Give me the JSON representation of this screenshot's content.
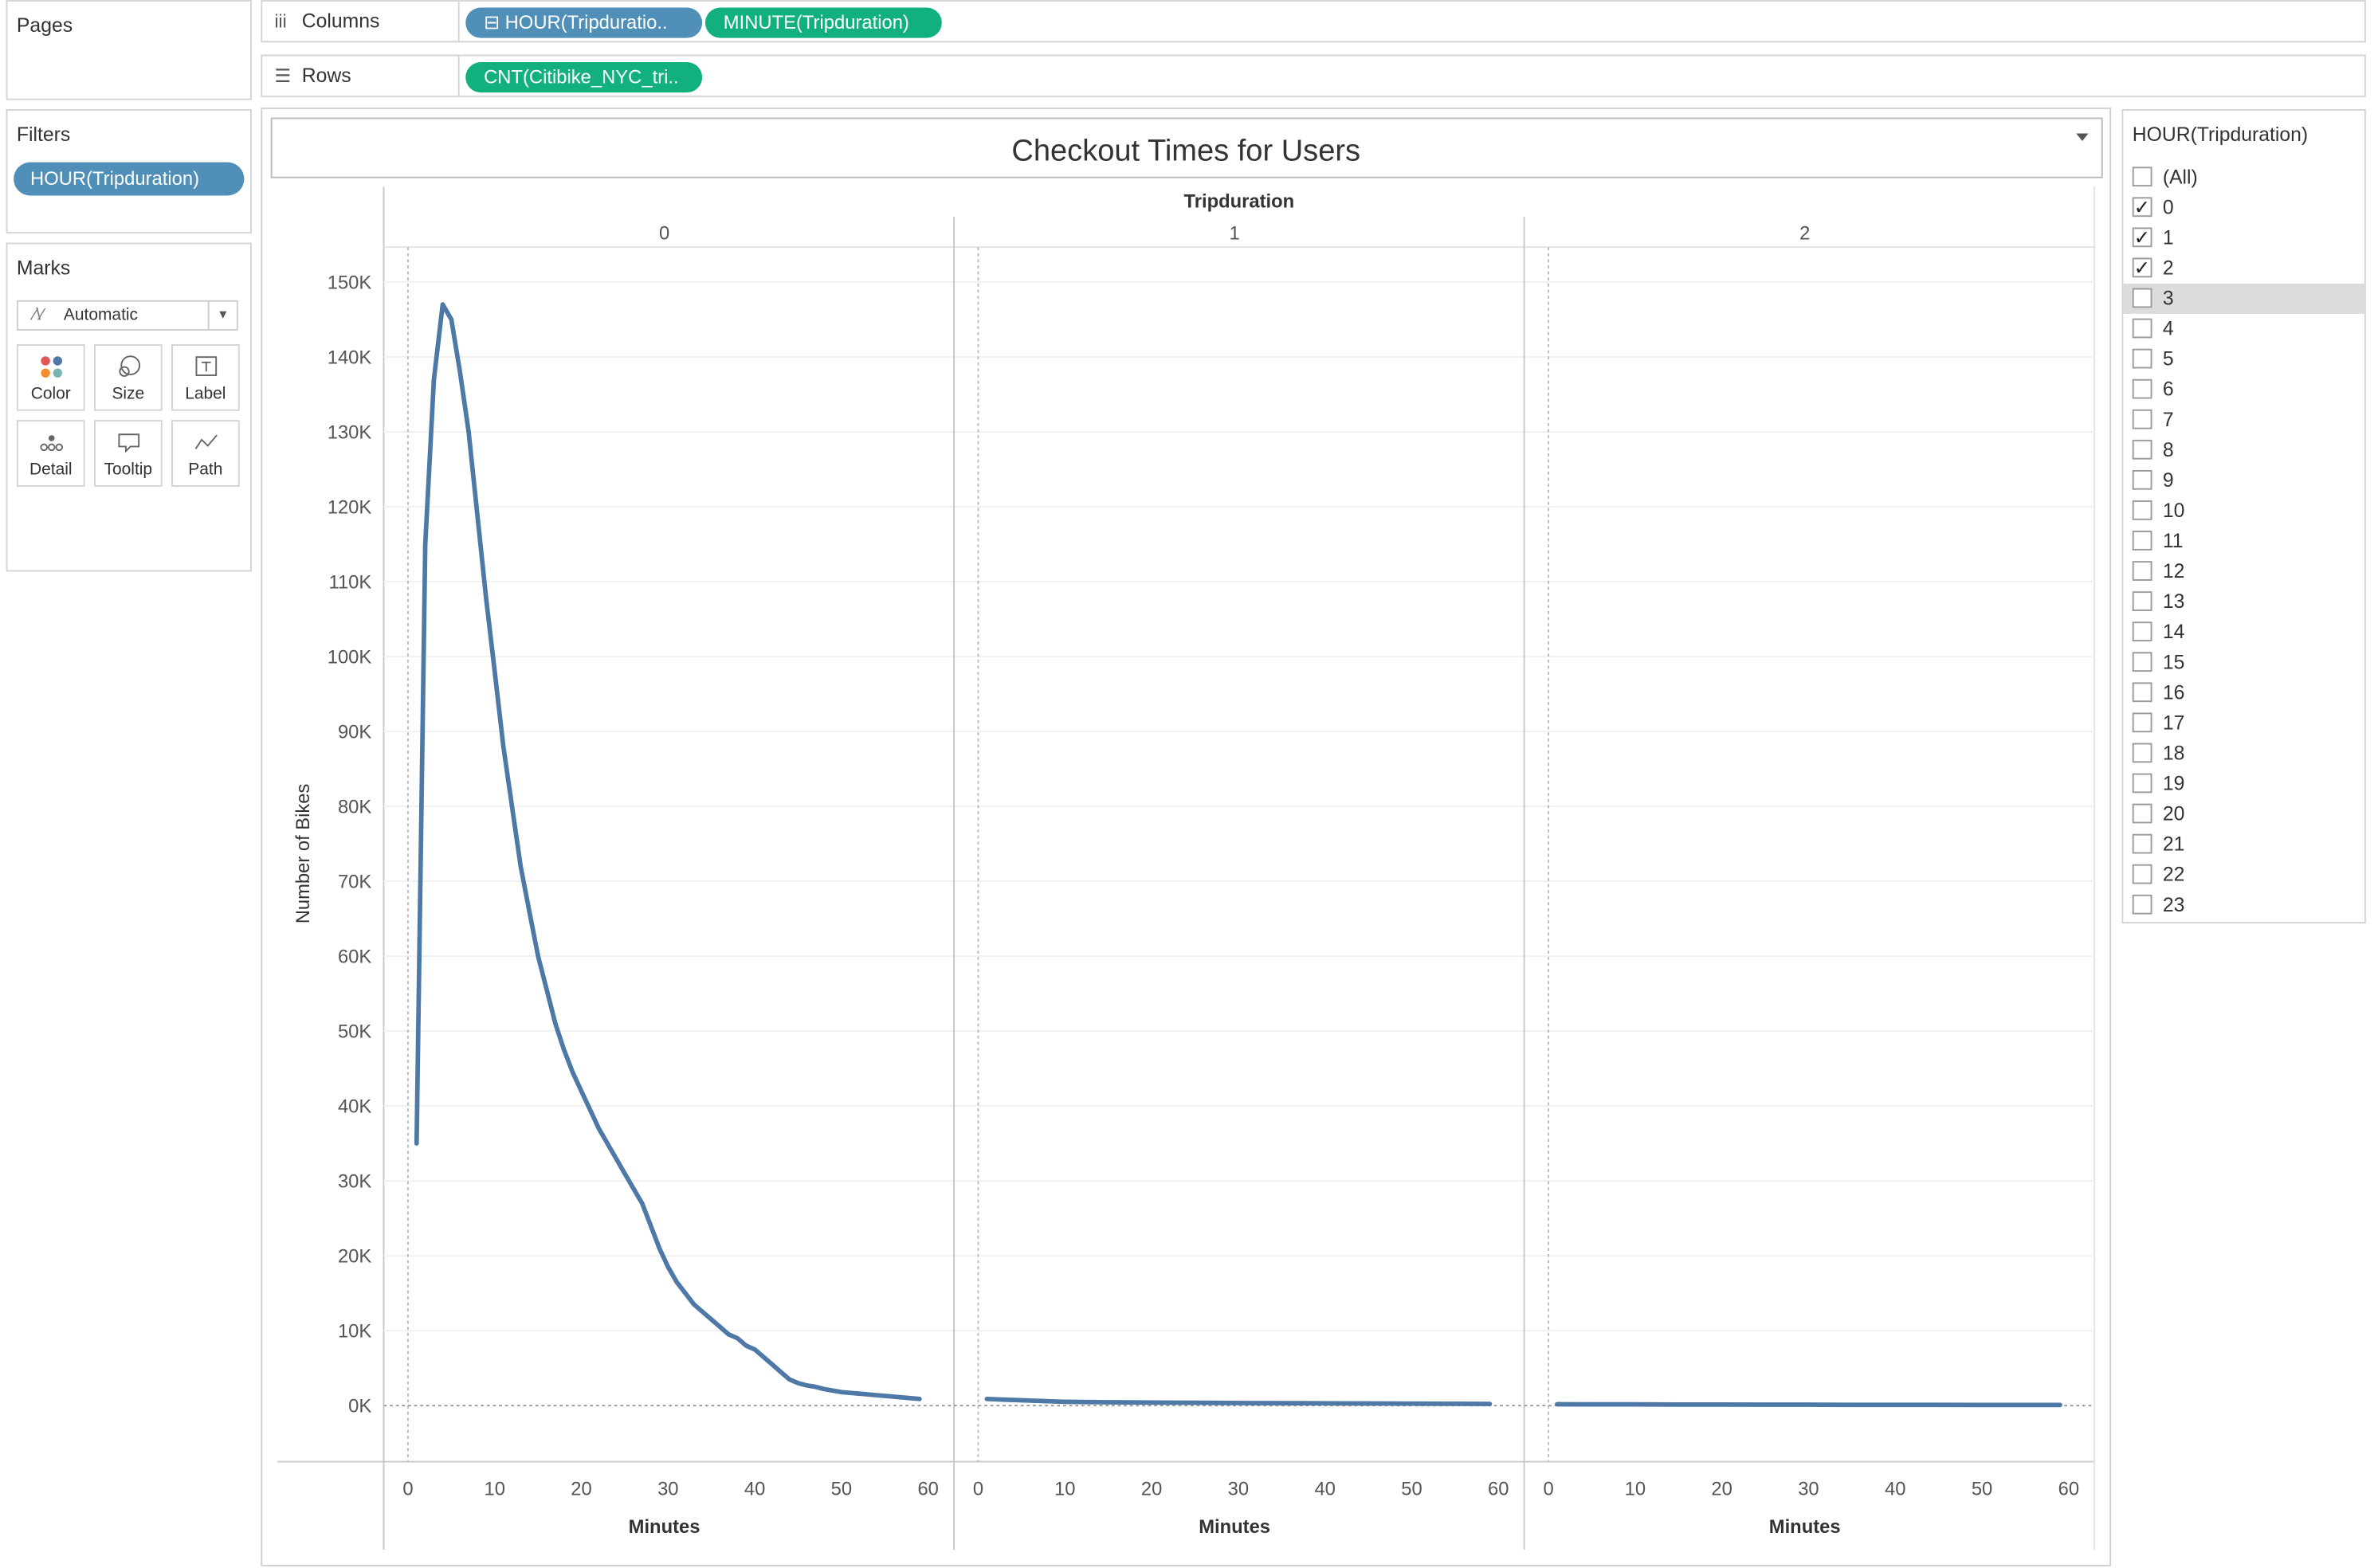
{
  "pages": {
    "title": "Pages"
  },
  "shelves": {
    "columns_label": "Columns",
    "columns_pills": [
      "⊟ HOUR(Tripduratio..",
      "MINUTE(Tripduration)"
    ],
    "rows_label": "Rows",
    "rows_pills": [
      "CNT(Citibike_NYC_tri.."
    ]
  },
  "filters": {
    "title": "Filters",
    "pill": "HOUR(Tripduration)"
  },
  "marks": {
    "title": "Marks",
    "type": "Automatic",
    "buttons": [
      {
        "label": "Color",
        "icon": "color-icon"
      },
      {
        "label": "Size",
        "icon": "size-icon"
      },
      {
        "label": "Label",
        "icon": "label-icon"
      },
      {
        "label": "Detail",
        "icon": "detail-icon"
      },
      {
        "label": "Tooltip",
        "icon": "tooltip-icon"
      },
      {
        "label": "Path",
        "icon": "path-icon"
      }
    ]
  },
  "legend": {
    "title": "HOUR(Tripduration)",
    "items": [
      {
        "label": "(All)",
        "checked": false
      },
      {
        "label": "0",
        "checked": true
      },
      {
        "label": "1",
        "checked": true
      },
      {
        "label": "2",
        "checked": true
      },
      {
        "label": "3",
        "checked": false,
        "highlight": true
      },
      {
        "label": "4",
        "checked": false
      },
      {
        "label": "5",
        "checked": false
      },
      {
        "label": "6",
        "checked": false
      },
      {
        "label": "7",
        "checked": false
      },
      {
        "label": "8",
        "checked": false
      },
      {
        "label": "9",
        "checked": false
      },
      {
        "label": "10",
        "checked": false
      },
      {
        "label": "11",
        "checked": false
      },
      {
        "label": "12",
        "checked": false
      },
      {
        "label": "13",
        "checked": false
      },
      {
        "label": "14",
        "checked": false
      },
      {
        "label": "15",
        "checked": false
      },
      {
        "label": "16",
        "checked": false
      },
      {
        "label": "17",
        "checked": false
      },
      {
        "label": "18",
        "checked": false
      },
      {
        "label": "19",
        "checked": false
      },
      {
        "label": "20",
        "checked": false
      },
      {
        "label": "21",
        "checked": false
      },
      {
        "label": "22",
        "checked": false
      },
      {
        "label": "23",
        "checked": false
      }
    ]
  },
  "chart_data": {
    "type": "line",
    "title": "Checkout Times for Users",
    "column_header": "Tripduration",
    "ylabel": "Number of Bikes",
    "xlabel": "Minutes",
    "ylim": [
      0,
      150000
    ],
    "yticks": [
      0,
      10000,
      20000,
      30000,
      40000,
      50000,
      60000,
      70000,
      80000,
      90000,
      100000,
      110000,
      120000,
      130000,
      140000,
      150000
    ],
    "ytick_labels": [
      "0K",
      "10K",
      "20K",
      "30K",
      "40K",
      "50K",
      "60K",
      "70K",
      "80K",
      "90K",
      "100K",
      "110K",
      "120K",
      "130K",
      "140K",
      "150K"
    ],
    "xlim": [
      0,
      60
    ],
    "xticks": [
      0,
      10,
      20,
      30,
      40,
      50,
      60
    ],
    "line_color": "#4e79a7",
    "panes": [
      {
        "hour": "0",
        "x": [
          1,
          2,
          3,
          4,
          5,
          6,
          7,
          8,
          9,
          10,
          11,
          12,
          13,
          14,
          15,
          16,
          17,
          18,
          19,
          20,
          21,
          22,
          23,
          24,
          25,
          26,
          27,
          28,
          29,
          30,
          31,
          32,
          33,
          34,
          35,
          36,
          37,
          38,
          39,
          40,
          41,
          42,
          43,
          44,
          45,
          46,
          47,
          48,
          49,
          50,
          51,
          52,
          53,
          54,
          55,
          56,
          57,
          58,
          59
        ],
        "values": [
          35000,
          115000,
          137000,
          147000,
          145000,
          138000,
          130000,
          119000,
          108000,
          98000,
          88000,
          80000,
          72000,
          66000,
          60000,
          55500,
          51000,
          47500,
          44500,
          42000,
          39500,
          37000,
          35000,
          33000,
          31000,
          29000,
          27000,
          24000,
          21000,
          18500,
          16500,
          15000,
          13500,
          12500,
          11500,
          10500,
          9500,
          9000,
          8000,
          7500,
          6500,
          5500,
          4500,
          3500,
          3000,
          2700,
          2500,
          2200,
          2000,
          1800,
          1700,
          1600,
          1500,
          1400,
          1300,
          1200,
          1100,
          1000,
          900
        ]
      },
      {
        "hour": "1",
        "x": [
          1,
          5,
          10,
          15,
          20,
          25,
          30,
          35,
          40,
          45,
          50,
          55,
          59
        ],
        "values": [
          900,
          700,
          500,
          450,
          400,
          380,
          350,
          320,
          300,
          280,
          260,
          240,
          230
        ]
      },
      {
        "hour": "2",
        "x": [
          1,
          5,
          10,
          15,
          20,
          25,
          30,
          35,
          40,
          45,
          50,
          55,
          59
        ],
        "values": [
          180,
          170,
          160,
          150,
          140,
          130,
          120,
          110,
          100,
          100,
          90,
          90,
          80
        ]
      }
    ]
  }
}
